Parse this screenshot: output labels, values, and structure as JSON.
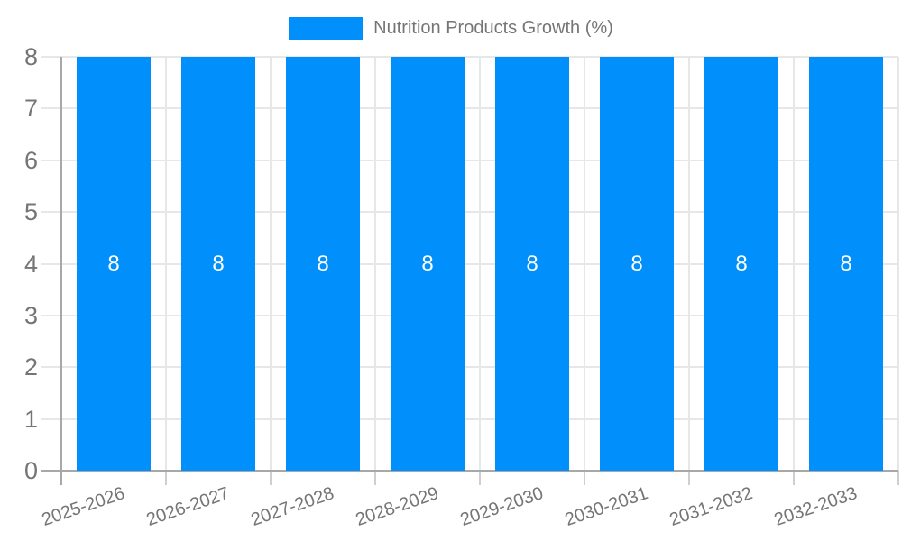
{
  "chart_data": {
    "type": "bar",
    "title": "Nutrition Products Growth (%)",
    "categories": [
      "2025-2026",
      "2026-2027",
      "2027-2028",
      "2028-2029",
      "2029-2030",
      "2030-2031",
      "2031-2032",
      "2032-2033"
    ],
    "series": [
      {
        "name": "Nutrition Products Growth (%)",
        "values": [
          8,
          8,
          8,
          8,
          8,
          8,
          8,
          8
        ]
      }
    ],
    "value_labels": [
      "8",
      "8",
      "8",
      "8",
      "8",
      "8",
      "8",
      "8"
    ],
    "xlabel": "",
    "ylabel": "",
    "ylim": [
      0,
      8
    ],
    "yticks": [
      0,
      1,
      2,
      3,
      4,
      5,
      6,
      7,
      8
    ],
    "grid": true,
    "legend_position": "top",
    "colors": {
      "bar": "#008FFB",
      "value_label": "#FFFFFF",
      "axis_label": "#757575",
      "legend_label": "#757575",
      "gridline": "#E7E7E7",
      "axis_line": "#A8A8A8",
      "tick": "#CFCFCF"
    }
  }
}
